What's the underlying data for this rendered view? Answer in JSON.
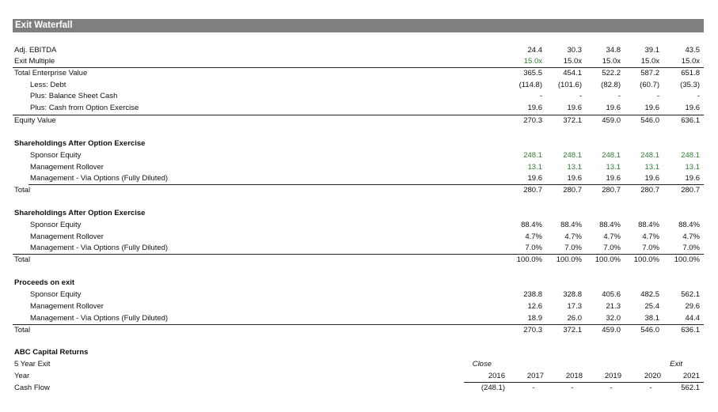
{
  "title": "Exit Waterfall",
  "valuation": {
    "rows": [
      {
        "label": "Adj. EBITDA",
        "values": [
          "24.4",
          "30.3",
          "34.8",
          "39.1",
          "43.5"
        ]
      },
      {
        "label": "Exit Multiple",
        "values": [
          "15.0x",
          "15.0x",
          "15.0x",
          "15.0x",
          "15.0x"
        ]
      },
      {
        "label": "Total Enterprise Value",
        "values": [
          "365.5",
          "454.1",
          "522.2",
          "587.2",
          "651.8"
        ]
      },
      {
        "label": "Less: Debt",
        "values": [
          "(114.8)",
          "(101.6)",
          "(82.8)",
          "(60.7)",
          "(35.3)"
        ]
      },
      {
        "label": "Plus: Balance Sheet Cash",
        "values": [
          "-",
          "-",
          "-",
          "-",
          "-"
        ]
      },
      {
        "label": "Plus: Cash from Option Exercise",
        "values": [
          "19.6",
          "19.6",
          "19.6",
          "19.6",
          "19.6"
        ]
      },
      {
        "label": "Equity Value",
        "values": [
          "270.3",
          "372.1",
          "459.0",
          "546.0",
          "636.1"
        ]
      }
    ]
  },
  "shareholdings": {
    "header": "Shareholdings After Option Exercise",
    "rows": [
      {
        "label": "Sponsor Equity",
        "values": [
          "248.1",
          "248.1",
          "248.1",
          "248.1",
          "248.1"
        ]
      },
      {
        "label": "Management Rollover",
        "values": [
          "13.1",
          "13.1",
          "13.1",
          "13.1",
          "13.1"
        ]
      },
      {
        "label": "Management - Via Options (Fully Diluted)",
        "values": [
          "19.6",
          "19.6",
          "19.6",
          "19.6",
          "19.6"
        ]
      },
      {
        "label": "Total",
        "values": [
          "280.7",
          "280.7",
          "280.7",
          "280.7",
          "280.7"
        ]
      }
    ]
  },
  "shareholdings_pct": {
    "header": "Shareholdings After Option Exercise",
    "rows": [
      {
        "label": "Sponsor Equity",
        "values": [
          "88.4%",
          "88.4%",
          "88.4%",
          "88.4%",
          "88.4%"
        ]
      },
      {
        "label": "Management Rollover",
        "values": [
          "4.7%",
          "4.7%",
          "4.7%",
          "4.7%",
          "4.7%"
        ]
      },
      {
        "label": "Management - Via Options (Fully Diluted)",
        "values": [
          "7.0%",
          "7.0%",
          "7.0%",
          "7.0%",
          "7.0%"
        ]
      },
      {
        "label": "Total",
        "values": [
          "100.0%",
          "100.0%",
          "100.0%",
          "100.0%",
          "100.0%"
        ]
      }
    ]
  },
  "proceeds": {
    "header": "Proceeds on exit",
    "rows": [
      {
        "label": "Sponsor Equity",
        "values": [
          "238.8",
          "328.8",
          "405.6",
          "482.5",
          "562.1"
        ]
      },
      {
        "label": "Management Rollover",
        "values": [
          "12.6",
          "17.3",
          "21.3",
          "25.4",
          "29.6"
        ]
      },
      {
        "label": "Management - Via Options (Fully Diluted)",
        "values": [
          "18.9",
          "26.0",
          "32.0",
          "38.1",
          "44.4"
        ]
      },
      {
        "label": "Total",
        "values": [
          "270.3",
          "372.1",
          "459.0",
          "546.0",
          "636.1"
        ]
      }
    ]
  },
  "returns": {
    "header": "ABC Capital Returns",
    "exit_label": "5 Year Exit",
    "close_label": "Close",
    "exit_marker": "Exit",
    "year_label": "Year",
    "years": [
      "2016",
      "2017",
      "2018",
      "2019",
      "2020",
      "2021"
    ],
    "cashflow_label": "Cash Flow",
    "cashflows": [
      "(248.1)",
      "-",
      "-",
      "-",
      "-",
      "562.1"
    ]
  },
  "colors": {
    "title_bar": "#7f7f7f",
    "green_text": "#2e7d32"
  }
}
